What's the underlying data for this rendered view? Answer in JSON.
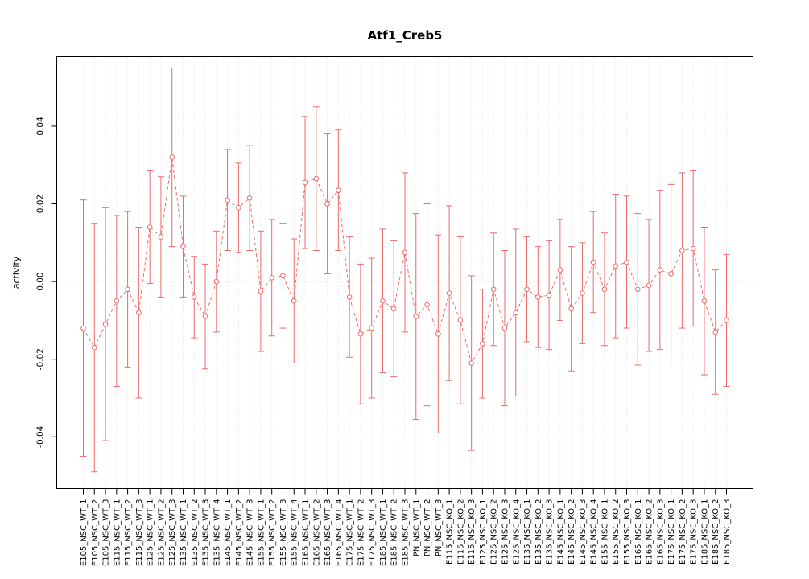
{
  "background_color": "#FFFFFF",
  "chart_data": {
    "type": "line",
    "title": "Atf1_Creb5",
    "xlabel": "",
    "ylabel": "activity",
    "ylim": [
      -0.0533,
      0.0579
    ],
    "yticks": [
      -0.04,
      -0.02,
      0.0,
      0.02,
      0.04
    ],
    "grid": "vertical dotted gridline at every category; dotted zero line",
    "legend": "none",
    "point_style": "open-circle",
    "line_style": "dashed",
    "error_bars": "symmetric with caps",
    "series_color": "#EE6A6A",
    "grid_color": "#D9D9D9",
    "axis_color": "#000000",
    "categories": [
      "E105_NSC_WT_1",
      "E105_NSC_WT_2",
      "E105_NSC_WT_3",
      "E115_NSC_WT_1",
      "E115_NSC_WT_2",
      "E115_NSC_WT_3",
      "E125_NSC_WT_1",
      "E125_NSC_WT_2",
      "E125_NSC_WT_3",
      "E135_NSC_WT_1",
      "E135_NSC_WT_2",
      "E135_NSC_WT_3",
      "E135_NSC_WT_4",
      "E145_NSC_WT_1",
      "E145_NSC_WT_2",
      "E145_NSC_WT_3",
      "E155_NSC_WT_1",
      "E155_NSC_WT_2",
      "E155_NSC_WT_3",
      "E155_NSC_WT_4",
      "E165_NSC_WT_1",
      "E165_NSC_WT_2",
      "E165_NSC_WT_3",
      "E165_NSC_WT_4",
      "E175_NSC_WT_1",
      "E175_NSC_WT_2",
      "E175_NSC_WT_3",
      "E185_NSC_WT_1",
      "E185_NSC_WT_2",
      "E185_NSC_WT_3",
      "PN_NSC_WT_1",
      "PN_NSC_WT_2",
      "PN_NSC_WT_3",
      "E115_NSC_KO_1",
      "E115_NSC_KO_2",
      "E115_NSC_KO_3",
      "E125_NSC_KO_1",
      "E125_NSC_KO_2",
      "E125_NSC_KO_3",
      "E125_NSC_KO_4",
      "E135_NSC_KO_1",
      "E135_NSC_KO_2",
      "E135_NSC_KO_3",
      "E145_NSC_KO_1",
      "E145_NSC_KO_2",
      "E145_NSC_KO_3",
      "E145_NSC_KO_4",
      "E155_NSC_KO_1",
      "E155_NSC_KO_2",
      "E155_NSC_KO_3",
      "E165_NSC_KO_1",
      "E165_NSC_KO_2",
      "E165_NSC_KO_3",
      "E175_NSC_KO_1",
      "E175_NSC_KO_2",
      "E175_NSC_KO_3",
      "E185_NSC_KO_1",
      "E185_NSC_KO_2",
      "E185_NSC_KO_3"
    ],
    "values": [
      -0.012,
      -0.017,
      -0.011,
      -0.005,
      -0.002,
      -0.008,
      0.014,
      0.0115,
      0.032,
      0.009,
      -0.004,
      -0.009,
      0.0,
      0.021,
      0.019,
      0.0215,
      -0.0025,
      0.001,
      0.0015,
      -0.005,
      0.0255,
      0.0265,
      0.02,
      0.0235,
      -0.004,
      -0.0135,
      -0.012,
      -0.005,
      -0.007,
      0.0075,
      -0.009,
      -0.006,
      -0.0135,
      -0.003,
      -0.01,
      -0.021,
      -0.016,
      -0.002,
      -0.012,
      -0.008,
      -0.002,
      -0.004,
      -0.0035,
      0.003,
      -0.007,
      -0.003,
      0.005,
      -0.002,
      0.004,
      0.005,
      -0.002,
      -0.001,
      0.003,
      0.002,
      0.008,
      0.0085,
      -0.005,
      -0.013,
      -0.01
    ],
    "errors": [
      0.033,
      0.032,
      0.03,
      0.022,
      0.02,
      0.022,
      0.0145,
      0.0155,
      0.023,
      0.013,
      0.0105,
      0.0135,
      0.013,
      0.013,
      0.0115,
      0.0135,
      0.0155,
      0.015,
      0.0135,
      0.016,
      0.017,
      0.0185,
      0.018,
      0.0155,
      0.0155,
      0.018,
      0.018,
      0.0185,
      0.0175,
      0.0205,
      0.0265,
      0.026,
      0.0255,
      0.0225,
      0.0215,
      0.0225,
      0.014,
      0.0145,
      0.02,
      0.0215,
      0.0135,
      0.013,
      0.014,
      0.013,
      0.016,
      0.013,
      0.013,
      0.0145,
      0.0185,
      0.017,
      0.0195,
      0.017,
      0.0205,
      0.023,
      0.02,
      0.02,
      0.019,
      0.016,
      0.017
    ]
  }
}
